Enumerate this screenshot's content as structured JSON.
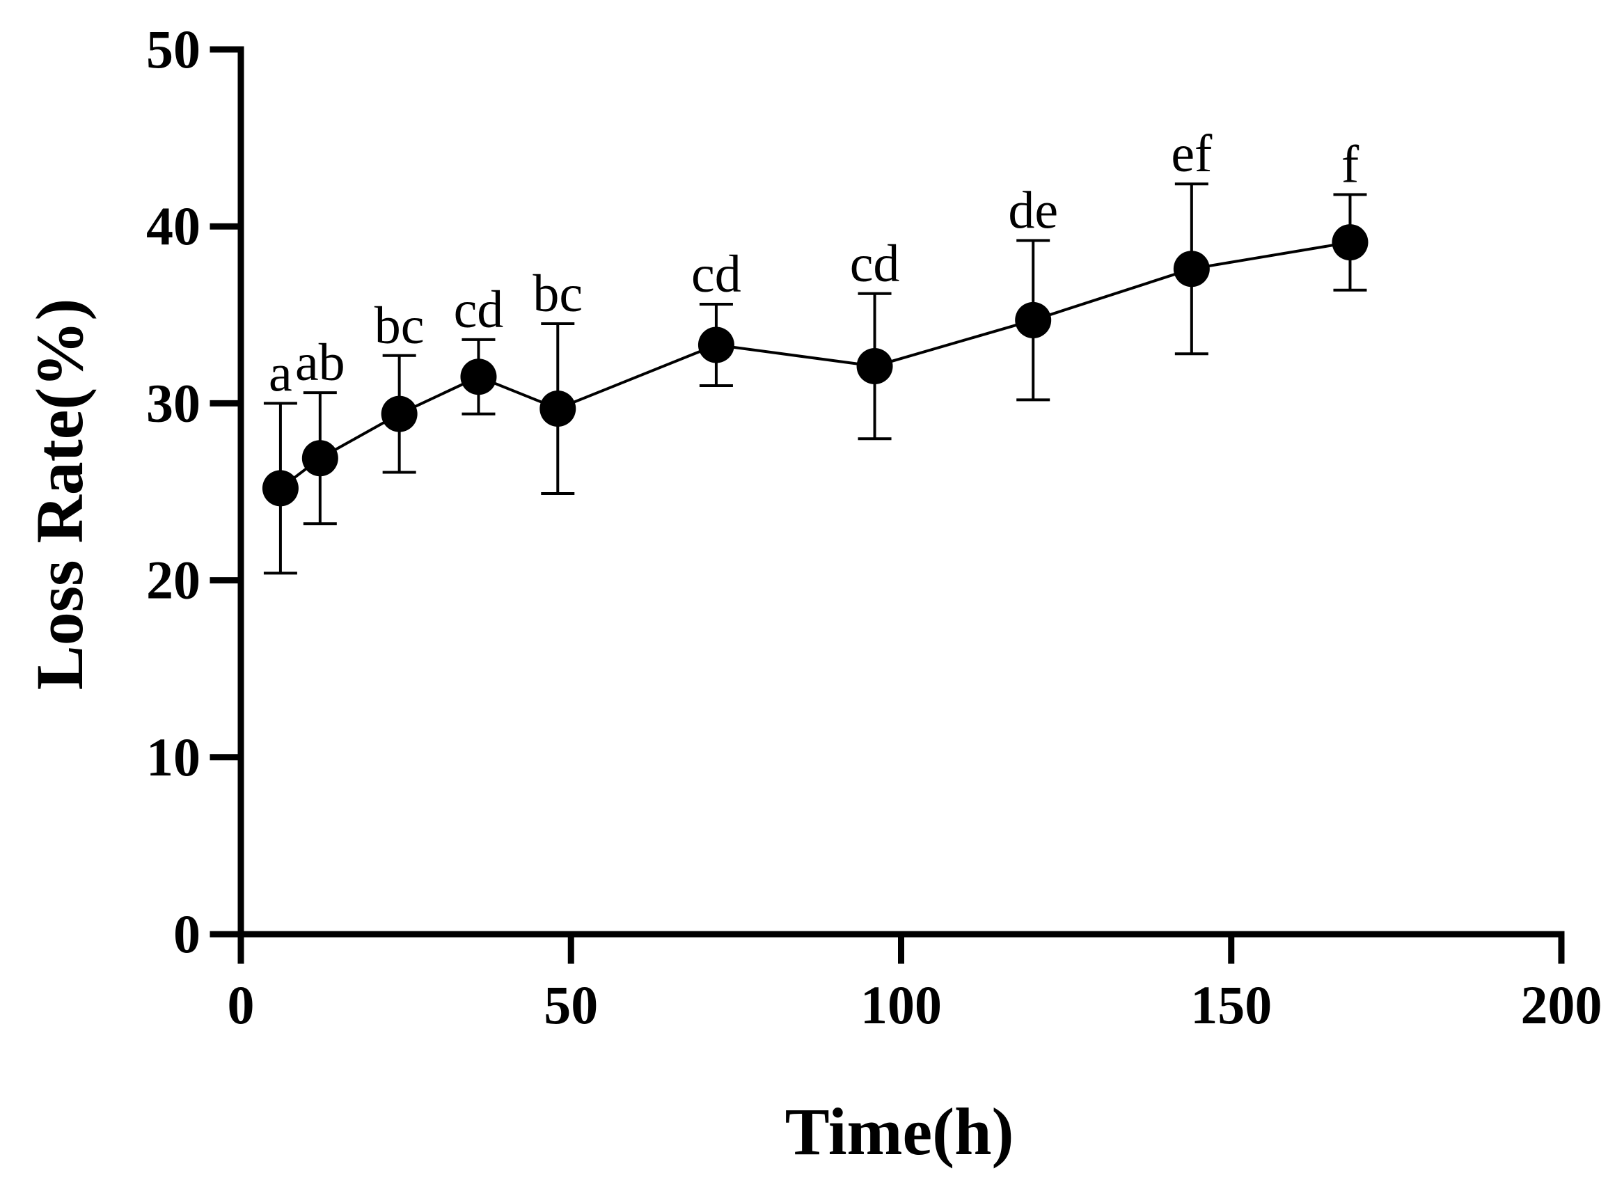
{
  "chart_data": {
    "type": "line",
    "title": "",
    "xlabel": "Time(h)",
    "ylabel": "Loss Rate(%)",
    "xlim": [
      0,
      200
    ],
    "ylim": [
      0,
      50
    ],
    "x_ticks": [
      0,
      50,
      100,
      150,
      200
    ],
    "y_ticks": [
      0,
      10,
      20,
      30,
      40,
      50
    ],
    "grid": false,
    "series": [
      {
        "name": "Loss Rate",
        "color": "#000000",
        "x": [
          6,
          12,
          24,
          36,
          48,
          72,
          96,
          120,
          144,
          168
        ],
        "values": [
          25.2,
          26.9,
          29.4,
          31.5,
          29.7,
          33.3,
          32.1,
          34.7,
          37.6,
          39.1
        ],
        "error": [
          4.8,
          3.7,
          3.3,
          2.1,
          4.8,
          2.3,
          4.1,
          4.5,
          4.8,
          2.7
        ],
        "annotations": [
          "a",
          "ab",
          "bc",
          "cd",
          "bc",
          "cd",
          "cd",
          "de",
          "ef",
          "f"
        ]
      }
    ]
  }
}
